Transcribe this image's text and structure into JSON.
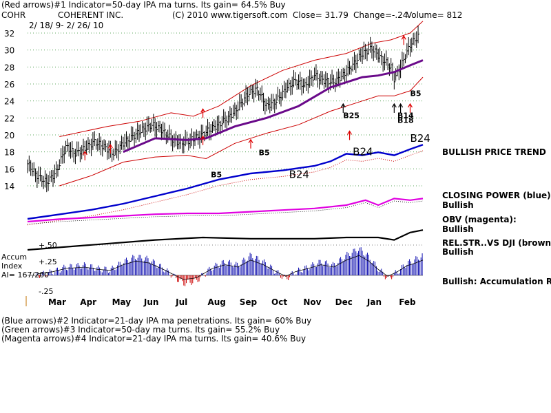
{
  "header": {
    "line1": "(Red arrows)#1 Indicator=50-day IPA ma turns. Its gain= 64.5% Buy",
    "ticker": "COHR",
    "company": "COHERENT INC.",
    "copyright": "(C) 2010 www.tigersoft.com",
    "close_text": "Close=  31.79",
    "change_text": "Change=-.24",
    "volume_text": "Volume= 812",
    "date_range": "2/ 18/ 9- 2/ 26/ 10"
  },
  "footer": {
    "lines": [
      "(Blue arrows)#2 Indicator=21-day IPA ma penetrations. Its gain= 60% Buy",
      "(Green arrows)#3 Indicator=50-day ma turns. Its gain= 55.2% Buy",
      "(Magenta arrows)#4 Indicator=21-day IPA ma turns. Its gain= 40.6% Buy"
    ]
  },
  "accum_panel": {
    "label_line1": "Accum",
    "label_line2": "Index",
    "label_line3": "AI= 167/200",
    "tick_labels": [
      "+.50",
      "+.25",
      "-.25"
    ]
  },
  "right_labels": {
    "bullish_price_trend": "BULLISH PRICE TREND",
    "closing_power": "CLOSING POWER (blue):",
    "closing_power_state": "Bullish",
    "obv": "OBV (magenta):",
    "obv_state": "Bullish",
    "relstr": "REL.STR..VS DJI (brown):",
    "relstr_state": "Bullish",
    "accum": "Bullish: Accumulation Rising"
  },
  "chart_data": {
    "type": "line",
    "y_ticks": [
      14,
      16,
      18,
      20,
      22,
      24,
      26,
      28,
      30,
      32
    ],
    "ylim": [
      14,
      32
    ],
    "grid": "dotted-horizontal",
    "x_months": [
      "Mar",
      "Apr",
      "May",
      "Jun",
      "Jul",
      "Aug",
      "Sep",
      "Oct",
      "Nov",
      "Dec",
      "Jan",
      "Feb"
    ],
    "xlim": [
      0,
      12.4
    ],
    "price_close": [
      [
        0.0,
        16.6
      ],
      [
        0.3,
        15.2
      ],
      [
        0.6,
        14.4
      ],
      [
        0.9,
        15.6
      ],
      [
        1.2,
        18.6
      ],
      [
        1.5,
        17.8
      ],
      [
        1.8,
        18.4
      ],
      [
        2.1,
        19.2
      ],
      [
        2.4,
        18.6
      ],
      [
        2.7,
        17.8
      ],
      [
        3.0,
        19.0
      ],
      [
        3.3,
        19.8
      ],
      [
        3.6,
        20.6
      ],
      [
        3.9,
        21.2
      ],
      [
        4.2,
        20.6
      ],
      [
        4.5,
        19.6
      ],
      [
        4.8,
        19.0
      ],
      [
        5.1,
        19.4
      ],
      [
        5.4,
        19.8
      ],
      [
        5.7,
        20.6
      ],
      [
        6.0,
        21.2
      ],
      [
        6.3,
        22.0
      ],
      [
        6.6,
        23.2
      ],
      [
        6.9,
        24.8
      ],
      [
        7.2,
        25.4
      ],
      [
        7.5,
        23.4
      ],
      [
        7.8,
        24.0
      ],
      [
        8.1,
        25.4
      ],
      [
        8.4,
        26.4
      ],
      [
        8.7,
        25.8
      ],
      [
        9.0,
        27.0
      ],
      [
        9.3,
        26.4
      ],
      [
        9.6,
        26.2
      ],
      [
        9.9,
        27.0
      ],
      [
        10.2,
        28.2
      ],
      [
        10.5,
        29.6
      ],
      [
        10.8,
        30.2
      ],
      [
        11.1,
        29.0
      ],
      [
        11.4,
        28.0
      ],
      [
        11.5,
        26.6
      ],
      [
        11.7,
        28.0
      ],
      [
        12.0,
        30.6
      ],
      [
        12.3,
        31.8
      ]
    ],
    "ma50": [
      [
        3.0,
        18.0
      ],
      [
        4.0,
        19.6
      ],
      [
        5.0,
        19.4
      ],
      [
        5.6,
        19.6
      ],
      [
        6.5,
        21.0
      ],
      [
        7.5,
        22.0
      ],
      [
        8.5,
        23.4
      ],
      [
        9.5,
        25.6
      ],
      [
        10.5,
        26.8
      ],
      [
        11.0,
        27.0
      ],
      [
        11.5,
        27.4
      ],
      [
        12.0,
        28.2
      ],
      [
        12.4,
        28.8
      ]
    ],
    "upper_band": [
      [
        1.0,
        19.8
      ],
      [
        2.5,
        21.0
      ],
      [
        3.5,
        21.6
      ],
      [
        4.5,
        22.6
      ],
      [
        5.2,
        22.2
      ],
      [
        6.0,
        23.4
      ],
      [
        7.0,
        25.8
      ],
      [
        8.0,
        27.6
      ],
      [
        9.0,
        28.8
      ],
      [
        10.0,
        29.6
      ],
      [
        10.8,
        30.8
      ],
      [
        11.4,
        31.2
      ],
      [
        12.0,
        32.0
      ],
      [
        12.4,
        33.4
      ]
    ],
    "lower_band": [
      [
        1.0,
        14.0
      ],
      [
        2.0,
        15.2
      ],
      [
        3.0,
        16.8
      ],
      [
        4.0,
        17.4
      ],
      [
        5.0,
        17.6
      ],
      [
        5.6,
        17.2
      ],
      [
        6.5,
        19.0
      ],
      [
        7.5,
        20.2
      ],
      [
        8.5,
        21.2
      ],
      [
        9.5,
        22.8
      ],
      [
        10.5,
        24.0
      ],
      [
        11.0,
        24.6
      ],
      [
        11.5,
        24.6
      ],
      [
        12.0,
        25.2
      ],
      [
        12.4,
        26.8
      ]
    ],
    "buy_signal_labels": [
      {
        "text": "B5",
        "x": 7.25,
        "y": 17.6
      },
      {
        "text": "B5",
        "x": 5.75,
        "y": 15.0
      },
      {
        "text": "B5",
        "x": 12.0,
        "y": 24.6
      },
      {
        "text": "B25",
        "x": 9.9,
        "y": 22.0
      },
      {
        "text": "B14",
        "x": 11.6,
        "y": 22.0
      },
      {
        "text": "B18",
        "x": 11.6,
        "y": 21.4
      }
    ],
    "red_arrows": [
      [
        1.8,
        17.0
      ],
      [
        2.6,
        17.8
      ],
      [
        5.5,
        18.8
      ],
      [
        5.5,
        22.0
      ],
      [
        7.0,
        18.4
      ],
      [
        10.1,
        19.4
      ],
      [
        11.8,
        30.6
      ],
      [
        12.0,
        22.6
      ]
    ],
    "black_arrows": [
      [
        9.9,
        22.6
      ],
      [
        11.5,
        22.6
      ],
      [
        11.7,
        22.6
      ]
    ],
    "closing_power": [
      [
        0.0,
        0.0
      ],
      [
        1.0,
        0.6
      ],
      [
        2.0,
        1.2
      ],
      [
        3.0,
        2.0
      ],
      [
        4.0,
        3.0
      ],
      [
        5.0,
        4.0
      ],
      [
        5.5,
        4.6
      ],
      [
        6.0,
        5.2
      ],
      [
        7.0,
        6.0
      ],
      [
        8.0,
        6.4
      ],
      [
        9.0,
        7.0
      ],
      [
        9.5,
        7.6
      ],
      [
        10.0,
        8.6
      ],
      [
        10.5,
        8.4
      ],
      [
        11.0,
        8.8
      ],
      [
        11.5,
        8.4
      ],
      [
        12.0,
        9.2
      ],
      [
        12.4,
        9.8
      ]
    ],
    "closing_power_signals": [
      {
        "text": "B24",
        "x": 8.2,
        "y": 5.4
      },
      {
        "text": "B24",
        "x": 10.2,
        "y": 8.4
      },
      {
        "text": "B24",
        "x": 12.0,
        "y": 10.2
      }
    ],
    "obv": [
      [
        0.0,
        0.0
      ],
      [
        1.0,
        0.3
      ],
      [
        2.0,
        0.5
      ],
      [
        3.0,
        0.7
      ],
      [
        4.0,
        0.9
      ],
      [
        5.0,
        1.0
      ],
      [
        6.0,
        1.0
      ],
      [
        7.0,
        1.2
      ],
      [
        8.0,
        1.4
      ],
      [
        9.0,
        1.6
      ],
      [
        10.0,
        2.0
      ],
      [
        10.6,
        2.6
      ],
      [
        11.0,
        2.0
      ],
      [
        11.5,
        2.8
      ],
      [
        12.0,
        2.6
      ],
      [
        12.4,
        2.8
      ]
    ],
    "relstr": [
      [
        0.0,
        0.0
      ],
      [
        2.0,
        0.4
      ],
      [
        4.0,
        0.8
      ],
      [
        5.5,
        1.0
      ],
      [
        7.0,
        0.9
      ],
      [
        9.0,
        0.9
      ],
      [
        10.0,
        1.0
      ],
      [
        11.0,
        1.0
      ],
      [
        11.5,
        0.8
      ],
      [
        12.0,
        1.4
      ],
      [
        12.4,
        1.6
      ]
    ],
    "accum_ylim": [
      -0.3,
      0.55
    ],
    "accum_index": [
      [
        0.3,
        0.0
      ],
      [
        0.8,
        0.05
      ],
      [
        1.2,
        0.12
      ],
      [
        1.8,
        0.15
      ],
      [
        2.2,
        0.1
      ],
      [
        2.6,
        0.08
      ],
      [
        3.0,
        0.2
      ],
      [
        3.4,
        0.28
      ],
      [
        3.8,
        0.24
      ],
      [
        4.2,
        0.12
      ],
      [
        4.6,
        -0.02
      ],
      [
        4.9,
        -0.12
      ],
      [
        5.3,
        -0.08
      ],
      [
        5.8,
        0.12
      ],
      [
        6.2,
        0.2
      ],
      [
        6.6,
        0.15
      ],
      [
        7.0,
        0.3
      ],
      [
        7.4,
        0.2
      ],
      [
        7.8,
        0.05
      ],
      [
        8.1,
        -0.05
      ],
      [
        8.4,
        0.05
      ],
      [
        8.8,
        0.12
      ],
      [
        9.2,
        0.2
      ],
      [
        9.6,
        0.15
      ],
      [
        10.0,
        0.3
      ],
      [
        10.4,
        0.4
      ],
      [
        10.7,
        0.28
      ],
      [
        11.0,
        0.1
      ],
      [
        11.3,
        -0.05
      ],
      [
        11.6,
        0.05
      ],
      [
        11.9,
        0.18
      ],
      [
        12.1,
        0.22
      ],
      [
        12.4,
        0.3
      ]
    ]
  }
}
